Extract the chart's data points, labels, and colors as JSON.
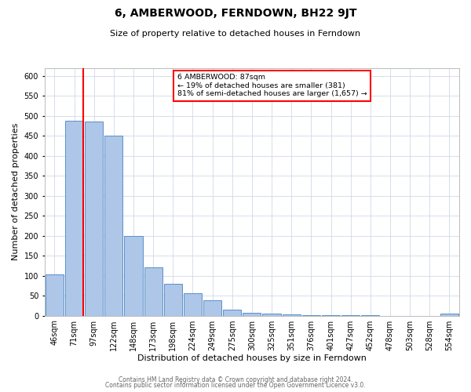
{
  "title": "6, AMBERWOOD, FERNDOWN, BH22 9JT",
  "subtitle": "Size of property relative to detached houses in Ferndown",
  "xlabel": "Distribution of detached houses by size in Ferndown",
  "ylabel": "Number of detached properties",
  "footer_line1": "Contains HM Land Registry data © Crown copyright and database right 2024.",
  "footer_line2": "Contains public sector information licensed under the Open Government Licence v3.0.",
  "bar_labels": [
    "46sqm",
    "71sqm",
    "97sqm",
    "122sqm",
    "148sqm",
    "173sqm",
    "198sqm",
    "224sqm",
    "249sqm",
    "275sqm",
    "300sqm",
    "325sqm",
    "351sqm",
    "376sqm",
    "401sqm",
    "427sqm",
    "452sqm",
    "478sqm",
    "503sqm",
    "528sqm",
    "554sqm"
  ],
  "bar_values": [
    103,
    487,
    485,
    450,
    200,
    120,
    80,
    57,
    38,
    15,
    8,
    5,
    3,
    2,
    1,
    1,
    1,
    0,
    0,
    0,
    5
  ],
  "bar_color": "#aec6e8",
  "bar_edge_color": "#5b8fc9",
  "ylim": [
    0,
    620
  ],
  "yticks": [
    0,
    50,
    100,
    150,
    200,
    250,
    300,
    350,
    400,
    450,
    500,
    550,
    600
  ],
  "red_line_x": 1.47,
  "annotation_text_line1": "6 AMBERWOOD: 87sqm",
  "annotation_text_line2": "← 19% of detached houses are smaller (381)",
  "annotation_text_line3": "81% of semi-detached houses are larger (1,657) →",
  "bg_color": "#ffffff",
  "grid_color": "#d0d8e8",
  "title_fontsize": 10,
  "subtitle_fontsize": 8,
  "xlabel_fontsize": 8,
  "ylabel_fontsize": 8,
  "tick_fontsize": 7,
  "footer_fontsize": 5.5
}
